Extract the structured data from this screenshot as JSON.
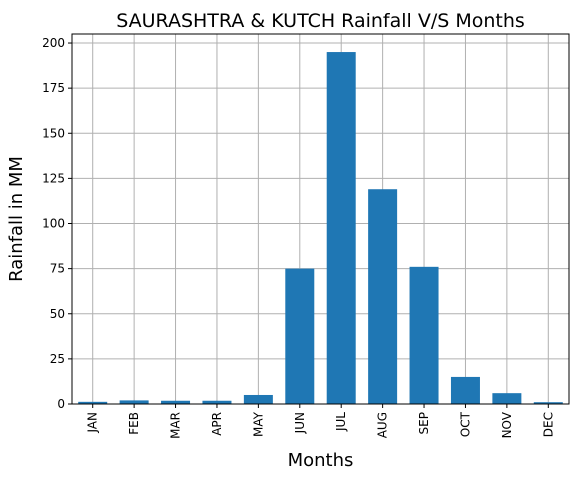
{
  "chart_data": {
    "type": "bar",
    "title": "SAURASHTRA & KUTCH Rainfall V/S Months",
    "xlabel": "Months",
    "ylabel": "Rainfall in MM",
    "categories": [
      "JAN",
      "FEB",
      "MAR",
      "APR",
      "MAY",
      "JUN",
      "JUL",
      "AUG",
      "SEP",
      "OCT",
      "NOV",
      "DEC"
    ],
    "values": [
      1.2,
      2.0,
      1.8,
      1.8,
      5.0,
      75.0,
      195.0,
      119.0,
      76.0,
      15.0,
      6.0,
      1.0
    ],
    "ylim": [
      0,
      205
    ],
    "yticks": [
      "0",
      "25",
      "50",
      "75",
      "100",
      "125",
      "150",
      "175",
      "200"
    ],
    "grid": true,
    "bar_color": "#1f77b4",
    "grid_color": "#b0b0b0"
  }
}
